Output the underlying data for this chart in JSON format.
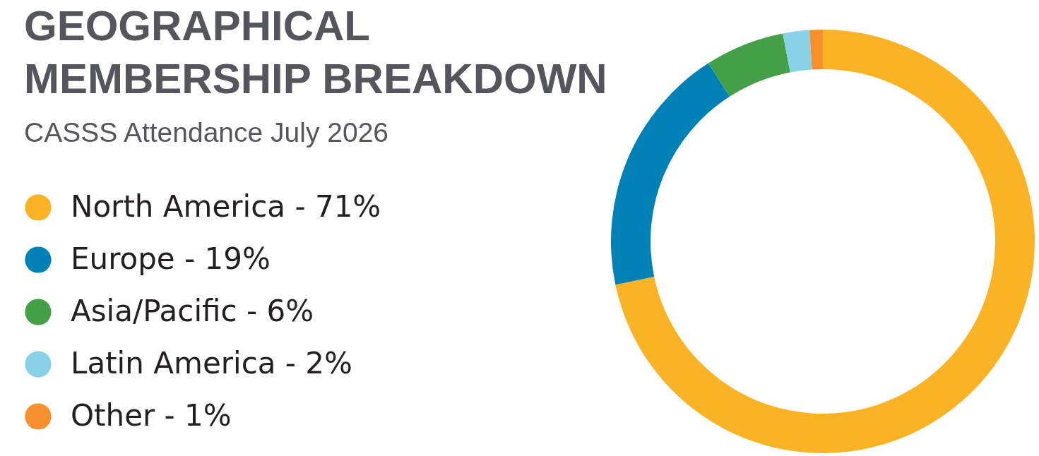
{
  "chart_data": {
    "type": "donut",
    "title": "GEOGRAPHICAL MEMBERSHIP BREAKDOWN",
    "subtitle": "CASSS Attendance July 2026",
    "categories": [
      "North America - 71%",
      "Europe - 19%",
      "Asia/Pacific - 6%",
      "Latin America - 2%",
      "Other - 1%"
    ],
    "values": [
      71,
      19,
      6,
      2,
      1
    ],
    "colors": [
      "#fbb326",
      "#0081b5",
      "#43a047",
      "#88d1e7",
      "#f78f2e"
    ],
    "legend": "left"
  }
}
